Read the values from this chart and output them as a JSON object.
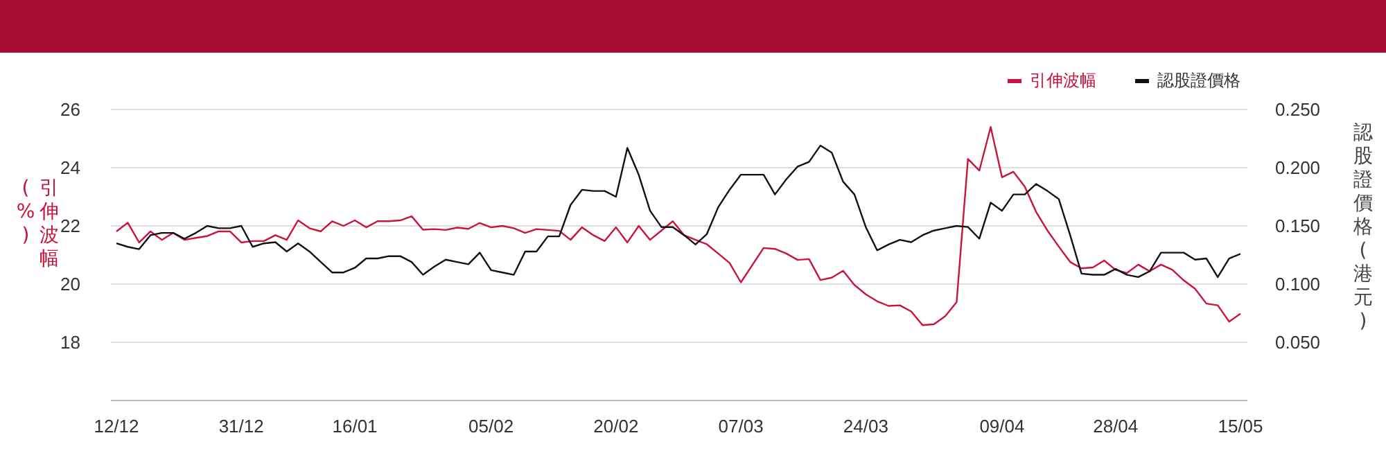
{
  "chart_data": {
    "type": "line",
    "ylabel": "引伸波幅(%)",
    "y2label": "認股證價格(港元)",
    "categories": [
      "12/12",
      null,
      null,
      null,
      null,
      null,
      null,
      null,
      null,
      null,
      null,
      "31/12",
      null,
      null,
      null,
      null,
      null,
      null,
      null,
      null,
      null,
      "16/01",
      null,
      null,
      null,
      null,
      null,
      null,
      null,
      null,
      null,
      null,
      null,
      "05/02",
      null,
      null,
      null,
      null,
      null,
      null,
      null,
      null,
      null,
      null,
      "20/02",
      null,
      null,
      null,
      null,
      null,
      null,
      null,
      null,
      null,
      null,
      "07/03",
      null,
      null,
      null,
      null,
      null,
      null,
      null,
      null,
      null,
      null,
      "24/03",
      null,
      null,
      null,
      null,
      null,
      null,
      null,
      null,
      null,
      null,
      null,
      "09/04",
      null,
      null,
      null,
      null,
      null,
      null,
      null,
      null,
      null,
      "28/04",
      null,
      null,
      null,
      null,
      null,
      null,
      null,
      null,
      null,
      null,
      "15/05"
    ],
    "series": [
      {
        "name": "引伸波幅",
        "color": "#c8143c",
        "axis": "y",
        "values": [
          21.81,
          22.11,
          21.43,
          21.81,
          21.52,
          21.76,
          21.52,
          21.59,
          21.65,
          21.81,
          21.81,
          21.43,
          21.48,
          21.48,
          21.68,
          21.52,
          22.19,
          21.92,
          21.81,
          22.16,
          22.0,
          22.19,
          21.95,
          22.16,
          22.16,
          22.19,
          22.33,
          21.87,
          21.89,
          21.86,
          21.94,
          21.9,
          22.1,
          21.95,
          22.0,
          21.92,
          21.76,
          21.89,
          21.86,
          21.83,
          21.52,
          21.95,
          21.68,
          21.48,
          21.95,
          21.43,
          22.0,
          21.52,
          21.84,
          22.16,
          21.68,
          21.52,
          21.37,
          21.05,
          20.73,
          20.06,
          20.65,
          21.24,
          21.21,
          21.05,
          20.83,
          20.86,
          20.14,
          20.22,
          20.46,
          19.97,
          19.65,
          19.41,
          19.25,
          19.27,
          19.06,
          18.59,
          18.62,
          18.9,
          19.38,
          24.3,
          23.9,
          25.4,
          23.67,
          23.86,
          23.35,
          22.48,
          21.84,
          21.29,
          20.76,
          20.54,
          20.57,
          20.81,
          20.49,
          20.38,
          20.67,
          20.44,
          20.67,
          20.49,
          20.13,
          19.84,
          19.33,
          19.27,
          18.71,
          18.98
        ]
      },
      {
        "name": "認股證價格",
        "color": "#111111",
        "axis": "y2",
        "values": [
          0.135,
          0.132,
          0.13,
          0.142,
          0.144,
          0.144,
          0.139,
          0.144,
          0.15,
          0.148,
          0.148,
          0.15,
          0.132,
          0.135,
          0.136,
          0.128,
          0.135,
          0.128,
          0.119,
          0.11,
          0.11,
          0.114,
          0.122,
          0.122,
          0.124,
          0.124,
          0.119,
          0.108,
          0.115,
          0.121,
          0.119,
          0.117,
          0.127,
          0.112,
          0.11,
          0.108,
          0.128,
          0.128,
          0.141,
          0.141,
          0.168,
          0.181,
          0.18,
          0.18,
          0.175,
          0.217,
          0.194,
          0.163,
          0.149,
          0.149,
          0.142,
          0.134,
          0.143,
          0.166,
          0.181,
          0.194,
          0.194,
          0.194,
          0.177,
          0.19,
          0.201,
          0.205,
          0.219,
          0.213,
          0.188,
          0.177,
          0.149,
          0.129,
          0.134,
          0.138,
          0.136,
          0.142,
          0.146,
          0.148,
          0.15,
          0.149,
          0.139,
          0.17,
          0.163,
          0.177,
          0.177,
          0.186,
          0.18,
          0.173,
          0.142,
          0.109,
          0.108,
          0.108,
          0.113,
          0.108,
          0.106,
          0.111,
          0.127,
          0.127,
          0.127,
          0.121,
          0.122,
          0.106,
          0.122,
          0.126
        ]
      }
    ],
    "ylim": [
      16,
      26
    ],
    "yticks": [
      18,
      20,
      22,
      24,
      26
    ],
    "y2lim": [
      0,
      0.25
    ],
    "y2ticks": [
      {
        "value": 0.05,
        "label": "0.050"
      },
      {
        "value": 0.1,
        "label": "0.100"
      },
      {
        "value": 0.15,
        "label": "0.150"
      },
      {
        "value": 0.2,
        "label": "0.200"
      },
      {
        "value": 0.25,
        "label": "0.250"
      }
    ],
    "grid": "y",
    "legend": "top right",
    "marker": "none",
    "line_style": "solid"
  }
}
